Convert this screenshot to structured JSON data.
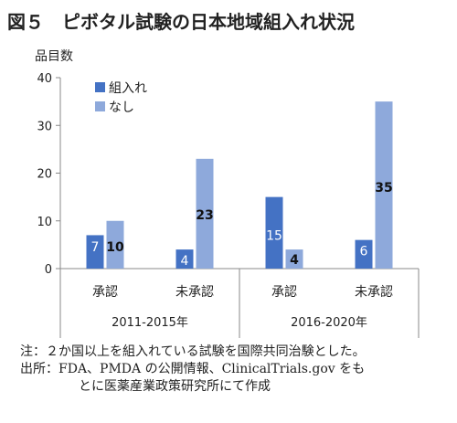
{
  "figure": {
    "title": "図５　ピボタル試験の日本地域組入れ状況"
  },
  "chart_data": {
    "type": "bar",
    "ylabel": "品目数",
    "ylim": [
      0,
      40
    ],
    "yticks": [
      0,
      10,
      20,
      30,
      40
    ],
    "grid": false,
    "legend_position": "top-left",
    "groups": [
      {
        "label": "2011-2015年",
        "categories": [
          "承認",
          "未承認"
        ]
      },
      {
        "label": "2016-2020年",
        "categories": [
          "承認",
          "未承認"
        ]
      }
    ],
    "categories": [
      "承認",
      "未承認",
      "承認",
      "未承認"
    ],
    "series": [
      {
        "name": "組入れ",
        "color": "#4472C4",
        "values": [
          7,
          4,
          15,
          6
        ]
      },
      {
        "name": "なし",
        "color": "#8EA9DB",
        "values": [
          10,
          23,
          4,
          35
        ]
      }
    ]
  },
  "notes": {
    "note": "注：２か国以上を組入れている試験を国際共同治験とした。",
    "source_line1": "出所：FDA、PMDA の公開情報、ClinicalTrials.gov をも",
    "source_line2": "とに医薬産業政策研究所にて作成"
  }
}
